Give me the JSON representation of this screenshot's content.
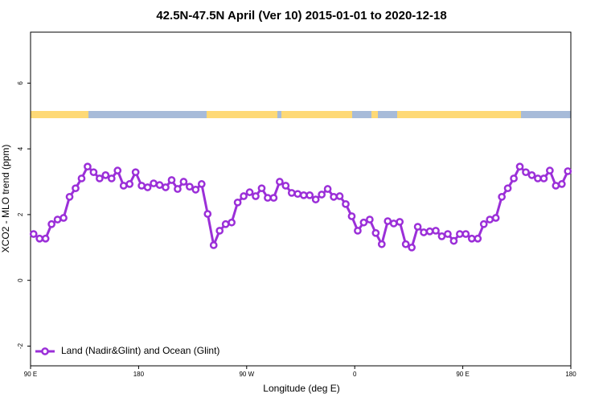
{
  "chart_data": {
    "type": "line",
    "title": "42.5N-47.5N April (Ver 10)   2015-01-01 to 2020-12-18",
    "xlabel": "Longitude (deg E)",
    "ylabel": "XCO2 - MLO trend (ppm)",
    "xlim": [
      90,
      540
    ],
    "ylim": [
      -2.6,
      7.55
    ],
    "xticks": [
      {
        "value": 90,
        "label": "90 E"
      },
      {
        "value": 180,
        "label": "180"
      },
      {
        "value": 270,
        "label": "90 W"
      },
      {
        "value": 360,
        "label": "0"
      },
      {
        "value": 450,
        "label": "90 E"
      },
      {
        "value": 540,
        "label": "180"
      }
    ],
    "yticks": [
      -2,
      0,
      2,
      4,
      6
    ],
    "legend": "bottom-left",
    "x": [
      92.5,
      97.5,
      102.5,
      107.5,
      112.5,
      117.5,
      122.5,
      127.5,
      132.5,
      137.5,
      142.5,
      147.5,
      152.5,
      157.5,
      162.5,
      167.5,
      172.5,
      177.5,
      182.5,
      187.5,
      192.5,
      197.5,
      202.5,
      207.5,
      212.5,
      217.5,
      222.5,
      227.5,
      232.5,
      237.5,
      242.5,
      247.5,
      252.5,
      257.5,
      262.5,
      267.5,
      272.5,
      277.5,
      282.5,
      287.5,
      292.5,
      297.5,
      302.5,
      307.5,
      312.5,
      317.5,
      322.5,
      327.5,
      332.5,
      337.5,
      342.5,
      347.5,
      352.5,
      357.5,
      362.5,
      367.5,
      372.5,
      377.5,
      382.5,
      387.5,
      392.5,
      397.5,
      402.5,
      407.5,
      412.5,
      417.5,
      422.5,
      427.5,
      432.5,
      437.5,
      442.5,
      447.5,
      452.5,
      457.5,
      462.5,
      467.5,
      472.5,
      477.5,
      482.5,
      487.5,
      492.5,
      497.5,
      502.5,
      507.5,
      512.5,
      517.5,
      522.5,
      527.5,
      532.5,
      537.5
    ],
    "series": [
      {
        "name": "Land (Nadir&Glint) and Ocean (Glint)",
        "color": "#9b2fd8",
        "values": [
          1.41,
          1.27,
          1.27,
          1.71,
          1.85,
          1.9,
          2.54,
          2.8,
          3.1,
          3.46,
          3.29,
          3.1,
          3.2,
          3.1,
          3.34,
          2.88,
          2.93,
          3.29,
          2.88,
          2.83,
          2.95,
          2.9,
          2.83,
          3.05,
          2.78,
          3.0,
          2.85,
          2.76,
          2.93,
          2.02,
          1.07,
          1.51,
          1.71,
          1.76,
          2.37,
          2.56,
          2.68,
          2.56,
          2.8,
          2.51,
          2.51,
          3.0,
          2.88,
          2.66,
          2.63,
          2.59,
          2.59,
          2.46,
          2.61,
          2.78,
          2.54,
          2.56,
          2.32,
          1.95,
          1.51,
          1.76,
          1.85,
          1.44,
          1.1,
          1.8,
          1.73,
          1.78,
          1.1,
          1.0,
          1.63,
          1.46,
          1.49,
          1.51,
          1.34,
          1.41,
          1.2,
          1.41,
          1.41,
          1.27,
          1.27,
          1.71,
          1.85,
          1.9,
          2.54,
          2.8,
          3.1,
          3.46,
          3.29,
          3.2,
          3.1,
          3.1,
          3.34,
          2.88,
          2.93,
          3.32
        ]
      }
    ]
  }
}
